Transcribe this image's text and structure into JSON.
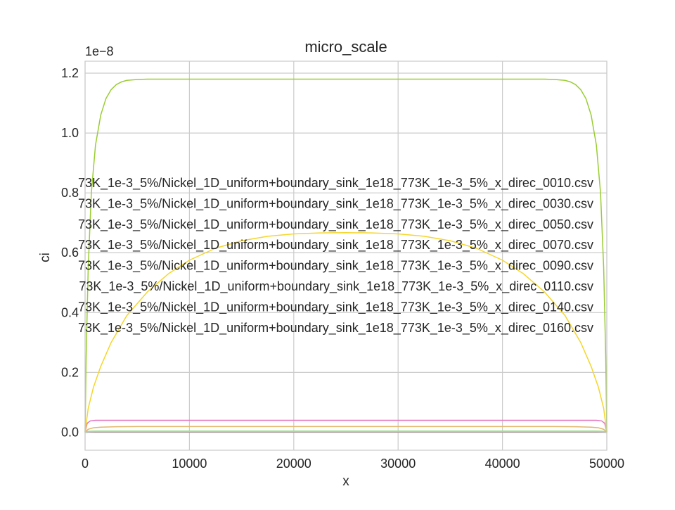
{
  "chart_data": {
    "type": "line",
    "title": "micro_scale",
    "xlabel": "x",
    "ylabel": "ci",
    "y_offset_text": "1e−8",
    "xlim": [
      0,
      50000
    ],
    "ylim": [
      -0.06,
      1.24
    ],
    "y_scale_factor": 1e-08,
    "x_ticks": [
      0,
      10000,
      20000,
      30000,
      40000,
      50000
    ],
    "x_tick_labels": [
      "0",
      "10000",
      "20000",
      "30000",
      "40000",
      "50000"
    ],
    "y_ticks": [
      0.0,
      0.2,
      0.4,
      0.6,
      0.8,
      1.0,
      1.2
    ],
    "y_tick_labels": [
      "0.0",
      "0.2",
      "0.4",
      "0.6",
      "0.8",
      "1.0",
      "1.2"
    ],
    "grid": true,
    "legend_placement": "center-left",
    "legend": [
      "73K_1e-3_5%/Nickel_1D_uniform+boundary_sink_1e18_773K_1e-3_5%_x_direc_0010.csv",
      "73K_1e-3_5%/Nickel_1D_uniform+boundary_sink_1e18_773K_1e-3_5%_x_direc_0030.csv",
      "73K_1e-3_5%/Nickel_1D_uniform+boundary_sink_1e18_773K_1e-3_5%_x_direc_0050.csv",
      "73K_1e-3_5%/Nickel_1D_uniform+boundary_sink_1e18_773K_1e-3_5%_x_direc_0070.csv",
      "73K_1e-3_5%/Nickel_1D_uniform+boundary_sink_1e18_773K_1e-3_5%_x_direc_0090.csv",
      "73K_1e-3_5%/Nickel_1D_uniform+boundary_sink_1e18_773K_1e-3_5%_x_direc_0110.csv",
      "73K_1e-3_5%/Nickel_1D_uniform+boundary_sink_1e18_773K_1e-3_5%_x_direc_0140.csv",
      "73K_1e-3_5%/Nickel_1D_uniform+boundary_sink_1e18_773K_1e-3_5%_x_direc_0160.csv"
    ],
    "series": [
      {
        "color": "#7f7f7f",
        "x": [
          0,
          200,
          500,
          1000,
          49000,
          49500,
          49800,
          50000
        ],
        "y": [
          0.0,
          0.0003,
          0.0005,
          0.0006,
          0.0006,
          0.0005,
          0.0003,
          0.0
        ]
      },
      {
        "color": "#c49c94",
        "x": [
          0,
          200,
          500,
          1000,
          49000,
          49500,
          49800,
          50000
        ],
        "y": [
          0.0,
          0.0008,
          0.0012,
          0.0014,
          0.0014,
          0.0012,
          0.0008,
          0.0
        ]
      },
      {
        "color": "#aec7e8",
        "x": [
          0,
          200,
          500,
          1000,
          49000,
          49500,
          49800,
          50000
        ],
        "y": [
          0.0,
          0.0015,
          0.0022,
          0.0025,
          0.0025,
          0.0022,
          0.0015,
          0.0
        ]
      },
      {
        "color": "#98df8a",
        "x": [
          0,
          200,
          500,
          1000,
          49000,
          49500,
          49800,
          50000
        ],
        "y": [
          0.0,
          0.0025,
          0.0035,
          0.004,
          0.004,
          0.0035,
          0.0025,
          0.0
        ]
      },
      {
        "color": "#e2b76a",
        "x": [
          0,
          300,
          800,
          1500,
          3000,
          5000,
          45000,
          47000,
          48500,
          49200,
          49700,
          50000
        ],
        "y": [
          0.0,
          0.01,
          0.015,
          0.017,
          0.0185,
          0.019,
          0.019,
          0.0185,
          0.017,
          0.015,
          0.01,
          0.0
        ]
      },
      {
        "color": "#e377c2",
        "x": [
          0,
          200,
          500,
          1000,
          2000,
          49000,
          49500,
          49800,
          50000
        ],
        "y": [
          0.0,
          0.03,
          0.038,
          0.04,
          0.04,
          0.04,
          0.038,
          0.03,
          0.0
        ]
      },
      {
        "color": "#f5d62a",
        "x": [
          0,
          300,
          800,
          1500,
          2500,
          4000,
          6000,
          8000,
          10000,
          12500,
          15000,
          17500,
          20000,
          22500,
          25000,
          27500,
          30000,
          32500,
          35000,
          37500,
          40000,
          42000,
          44000,
          46000,
          47500,
          48500,
          49200,
          49700,
          50000
        ],
        "y": [
          0.0,
          0.08,
          0.15,
          0.22,
          0.3,
          0.39,
          0.47,
          0.53,
          0.575,
          0.615,
          0.64,
          0.655,
          0.663,
          0.666,
          0.667,
          0.666,
          0.663,
          0.655,
          0.64,
          0.615,
          0.575,
          0.53,
          0.47,
          0.39,
          0.3,
          0.22,
          0.15,
          0.08,
          0.0
        ]
      },
      {
        "color": "#9acd32",
        "x": [
          0,
          100,
          300,
          600,
          1000,
          1500,
          2000,
          2500,
          3000,
          3500,
          4000,
          5000,
          6000,
          8000,
          42000,
          44000,
          45000,
          46000,
          46500,
          47000,
          47500,
          48000,
          48500,
          49000,
          49400,
          49700,
          49900,
          50000
        ],
        "y": [
          0.0,
          0.25,
          0.55,
          0.8,
          0.96,
          1.06,
          1.115,
          1.145,
          1.162,
          1.171,
          1.176,
          1.179,
          1.18,
          1.18,
          1.18,
          1.18,
          1.179,
          1.176,
          1.171,
          1.162,
          1.145,
          1.115,
          1.06,
          0.96,
          0.8,
          0.55,
          0.25,
          0.0
        ]
      }
    ]
  }
}
